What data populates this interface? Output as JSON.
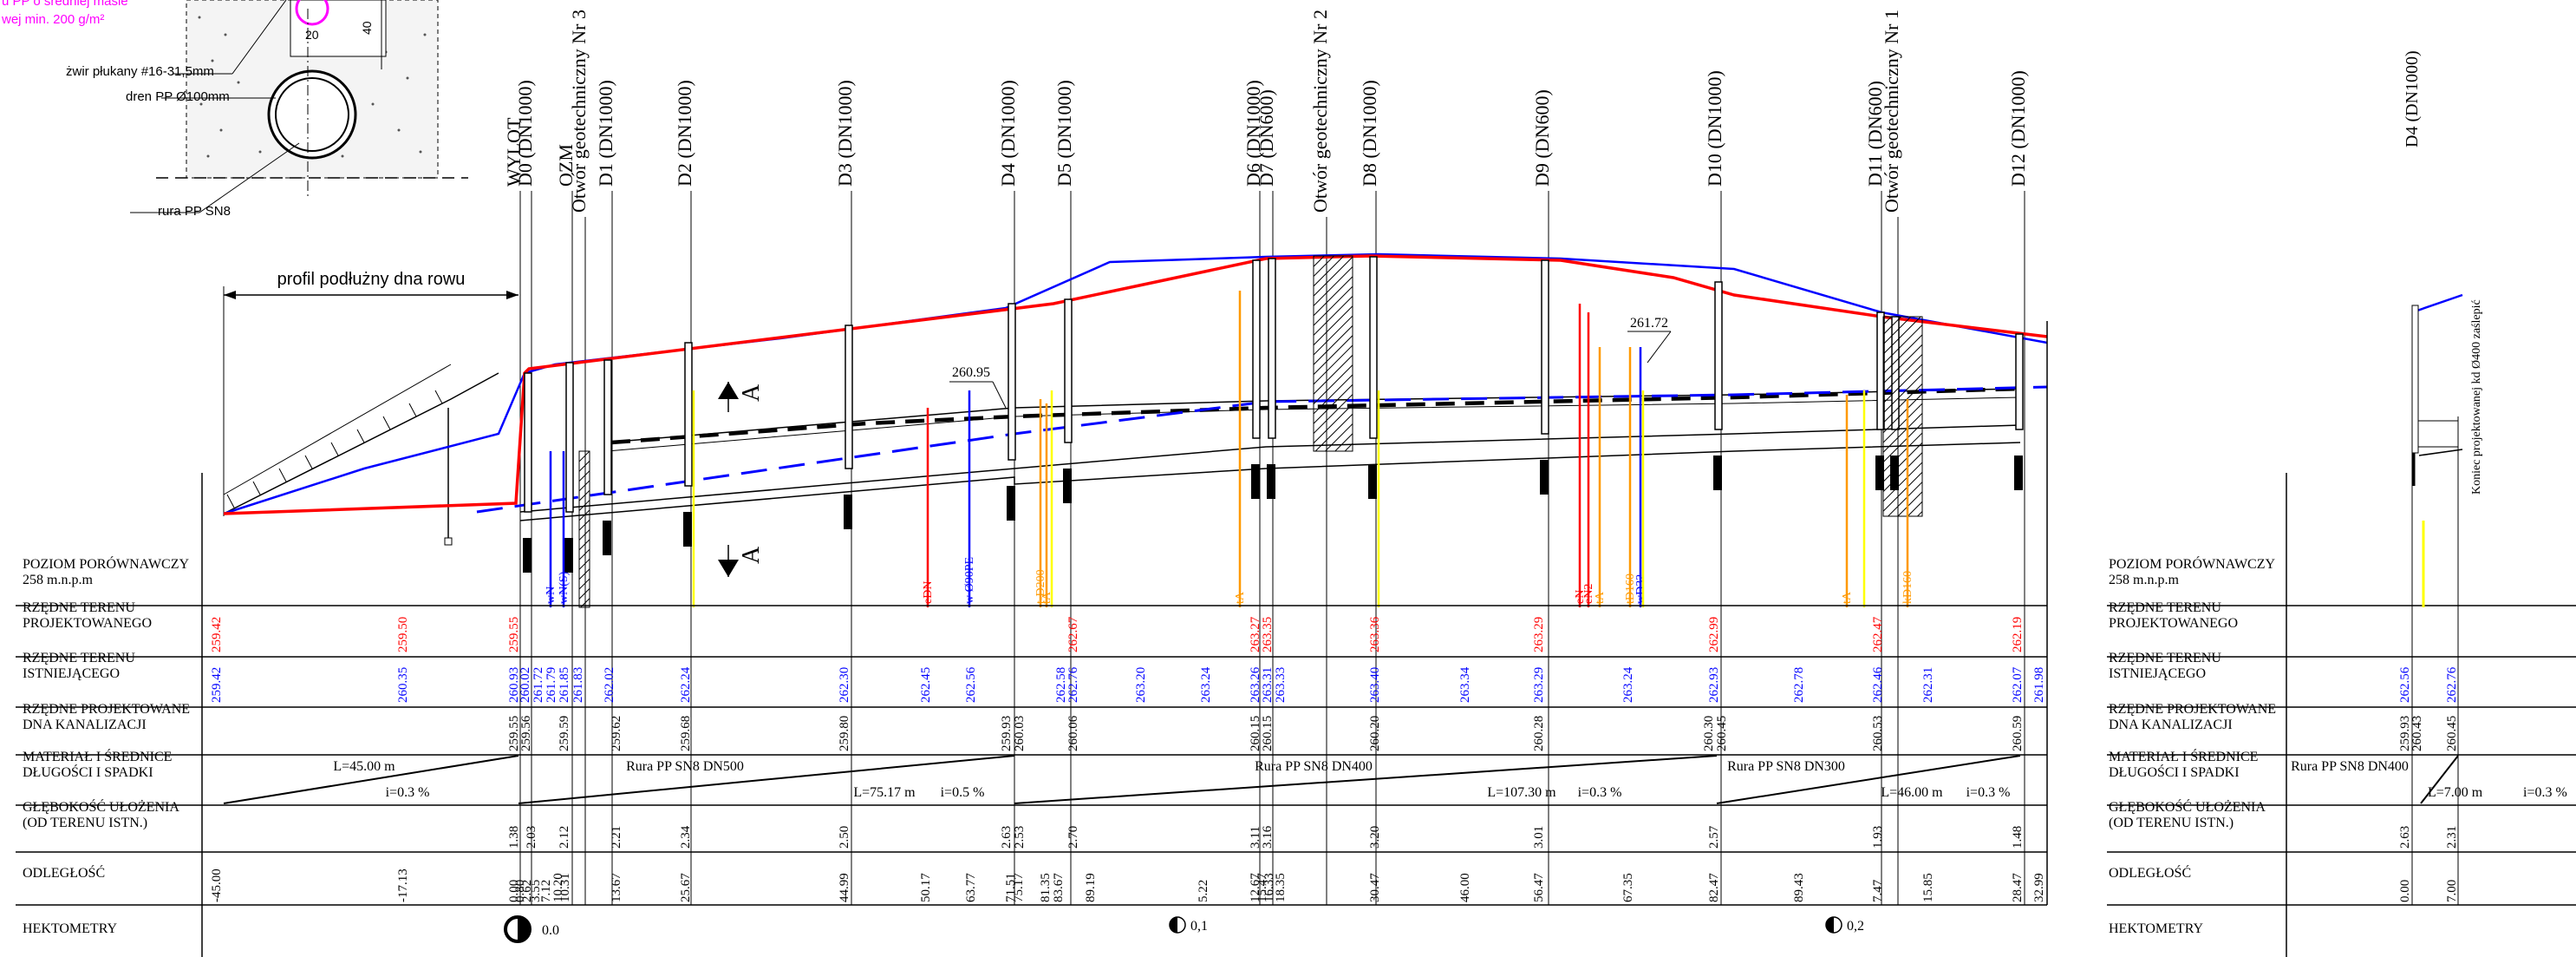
{
  "detail": {
    "note_lines": [
      "u PP o średniej masie",
      "wej min. 200 g/m²"
    ],
    "gravel_label": "żwir płukany #16-31,5mm",
    "drain_label": "dren PP Ø100mm",
    "pipe_label": "rura PP SN8",
    "dim_20": "20",
    "dim_40": "40"
  },
  "ditch_label": "profil podłużny dna rowu",
  "section_label": "A",
  "wells": [
    {
      "id": "wylot",
      "label": "WYLOT"
    },
    {
      "id": "d0",
      "label": "D0 (DN1000)"
    },
    {
      "id": "ozm",
      "label": "OZM"
    },
    {
      "id": "otw3",
      "label": "Otwór geotechniczny Nr 3"
    },
    {
      "id": "d1",
      "label": "D1 (DN1000)"
    },
    {
      "id": "d2",
      "label": "D2 (DN1000)"
    },
    {
      "id": "d3",
      "label": "D3 (DN1000)"
    },
    {
      "id": "d4",
      "label": "D4 (DN1000)"
    },
    {
      "id": "d5",
      "label": "D5 (DN1000)"
    },
    {
      "id": "d6",
      "label": "D6 (DN1000)"
    },
    {
      "id": "d7",
      "label": "D7 (DN600)"
    },
    {
      "id": "otw2",
      "label": "Otwór geotechniczny Nr 2"
    },
    {
      "id": "d8",
      "label": "D8 (DN1000)"
    },
    {
      "id": "d9",
      "label": "D9 (DN600)"
    },
    {
      "id": "d10",
      "label": "D10 (DN1000)"
    },
    {
      "id": "d11",
      "label": "D11 (DN600)"
    },
    {
      "id": "otw1",
      "label": "Otwór geotechniczny Nr 1"
    },
    {
      "id": "d12",
      "label": "D12 (DN1000)"
    }
  ],
  "annotations": {
    "elev_a": "260.95",
    "elev_b": "261.72",
    "right_end_note": "Koniec projektowanej kd Ø400 zaślepić",
    "right_well": "D4 (DN1000)"
  },
  "crossings": [
    {
      "label": "wN",
      "color": "#0000ff"
    },
    {
      "label": "wN(S)",
      "color": "#0000ff"
    },
    {
      "label": "eDN",
      "color": "#ff0000"
    },
    {
      "label": "w Ø90PE",
      "color": "#0000ff"
    },
    {
      "label": "t-D200",
      "color": "#ff9900"
    },
    {
      "label": "tA",
      "color": "#ff9900"
    },
    {
      "label": "tA",
      "color": "#ff9900"
    },
    {
      "label": "eN",
      "color": "#ff0000"
    },
    {
      "label": "eN2",
      "color": "#ff0000"
    },
    {
      "label": "tA",
      "color": "#ff9900"
    },
    {
      "label": "tD160",
      "color": "#ff9900"
    },
    {
      "label": "wD32",
      "color": "#0000ff"
    },
    {
      "label": "tA",
      "color": "#ff9900"
    },
    {
      "label": "kD160",
      "color": "#ff9900"
    }
  ],
  "table": {
    "rows": [
      {
        "key": "poziom",
        "lines": [
          "POZIOM PORÓWNAWCZY",
          "258 m.n.p.m"
        ]
      },
      {
        "key": "rzp",
        "lines": [
          "RZĘDNE TERENU",
          "PROJEKTOWANEGO"
        ]
      },
      {
        "key": "rzi",
        "lines": [
          "RZĘDNE TERENU",
          "ISTNIEJĄCEGO"
        ]
      },
      {
        "key": "rzk",
        "lines": [
          "RZĘDNE PROJEKTOWANE",
          "DNA KANALIZACJI"
        ]
      },
      {
        "key": "mat",
        "lines": [
          "MATERIAŁ I ŚREDNICE",
          "DŁUGOŚCI I SPADKI"
        ]
      },
      {
        "key": "gleb",
        "lines": [
          "GŁĘBOKOŚĆ UŁOŻENIA",
          "(OD TERENU ISTN.)"
        ]
      },
      {
        "key": "odl",
        "lines": [
          "ODLEGŁOŚĆ"
        ]
      },
      {
        "key": "hekt",
        "lines": [
          "HEKTOMETRY"
        ]
      }
    ],
    "terrain_projected": [
      "259.42",
      "259.50",
      "259.55",
      "262.67",
      "263.27",
      "263.35",
      "263.36",
      "263.29",
      "262.99",
      "262.47",
      "262.19"
    ],
    "terrain_existing": [
      "259.42",
      "260.35",
      "260.93",
      "260.02",
      "261.72",
      "261.79",
      "261.85",
      "261.83",
      "262.02",
      "262.24",
      "262.30",
      "262.45",
      "262.56",
      "262.58",
      "262.76",
      "263.20",
      "263.24",
      "263.26",
      "263.31",
      "263.33",
      "263.40",
      "263.34",
      "263.29",
      "263.24",
      "262.93",
      "262.78",
      "262.46",
      "262.31",
      "262.07",
      "261.98"
    ],
    "sewer_invert": [
      "259.55",
      "259.56",
      "259.59",
      "259.62",
      "259.68",
      "259.80",
      "259.93",
      "260.03",
      "260.06",
      "260.15",
      "260.15",
      "260.20",
      "260.28",
      "260.30",
      "260.45",
      "260.53",
      "260.59"
    ],
    "material_segments": [
      {
        "material": "",
        "length": "L=45.00 m",
        "slope": "i=0.3 %"
      },
      {
        "material": "Rura PP SN8 DN500",
        "length": "L=75.17 m",
        "slope": "i=0.5 %"
      },
      {
        "material": "Rura PP SN8 DN400",
        "length": "L=107.30 m",
        "slope": "i=0.3 %"
      },
      {
        "material": "Rura PP SN8 DN300",
        "length": "L=46.00 m",
        "slope": "i=0.3 %"
      }
    ],
    "depths": [
      "1.38",
      "2.03",
      "2.12",
      "2.21",
      "2.34",
      "2.50",
      "2.63",
      "2.53",
      "2.70",
      "3.11",
      "3.16",
      "3.20",
      "3.01",
      "2.57",
      "1.93",
      "1.48"
    ],
    "distances": [
      "-45.00",
      "-17.13",
      "0.00",
      "0.80",
      "2.62",
      "3.55",
      "7.12",
      "10.20",
      "10.31",
      "13.67",
      "25.67",
      "44.99",
      "50.17",
      "63.77",
      "71.51",
      "75.17",
      "81.35",
      "83.67",
      "89.19",
      "5.22",
      "12.67",
      "15.47",
      "16.33",
      "18.35",
      "30.47",
      "46.00",
      "56.47",
      "67.35",
      "82.47",
      "89.43",
      "7.47",
      "15.85",
      "28.47",
      "32.99"
    ],
    "hectometers": [
      "0.0",
      "0,1",
      "0,2"
    ]
  },
  "right_table": {
    "terrain_existing": [
      "262.56",
      "262.76"
    ],
    "sewer_invert": [
      "259.93",
      "260.43",
      "260.45"
    ],
    "material": "Rura PP SN8 DN400",
    "length": "L=7.00 m",
    "slope": "i=0.3 %",
    "depths": [
      "2.63",
      "2.31"
    ],
    "distances": [
      "0.00",
      "7.00"
    ]
  },
  "colors": {
    "terrain_projected": "#ff0000",
    "terrain_existing": "#0000ff",
    "sewer": "#000000",
    "crossing_orange": "#ff9900",
    "crossing_yellow": "#ffff00",
    "note_magenta": "#ff00ff"
  }
}
